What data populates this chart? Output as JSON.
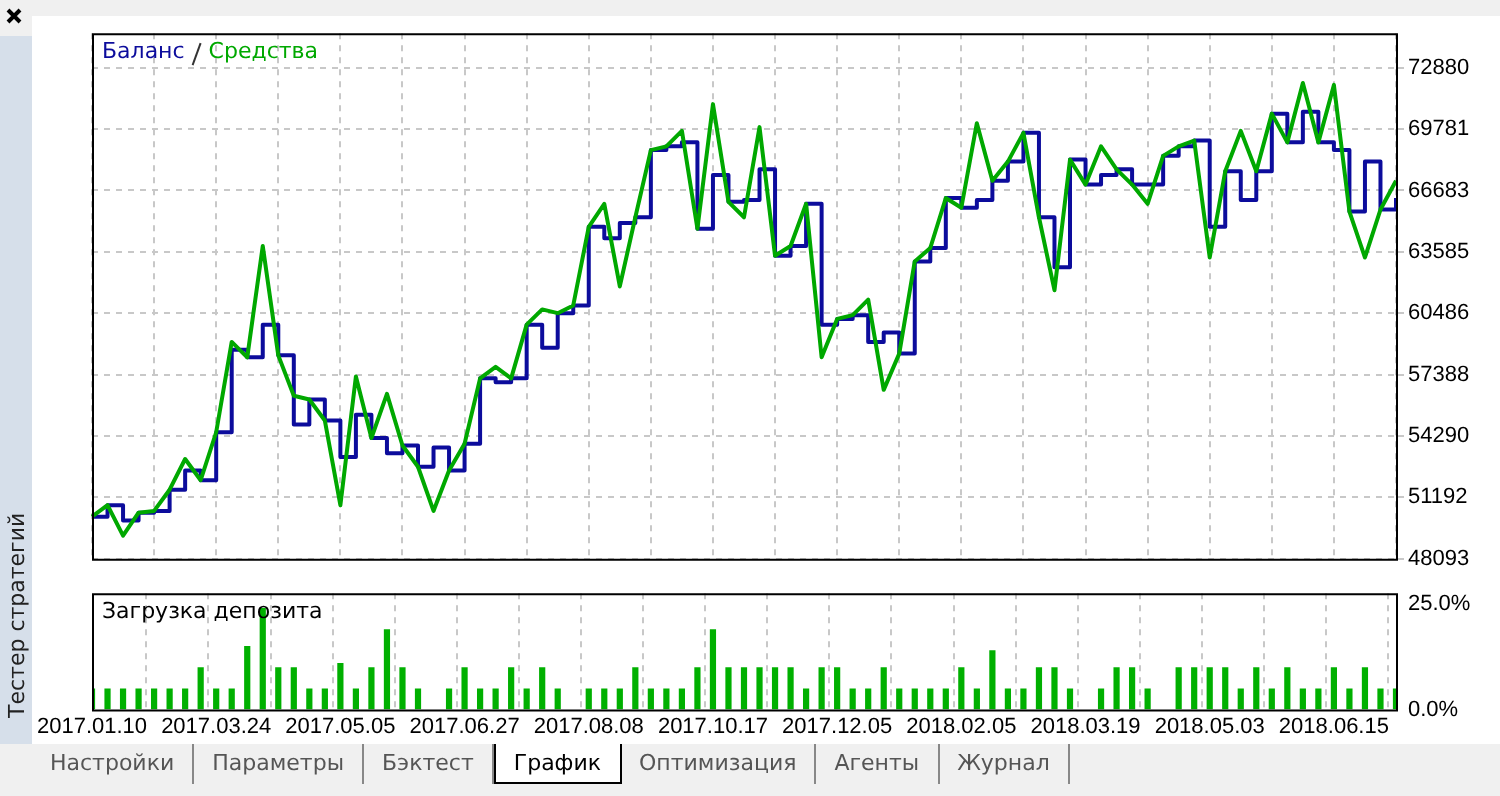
{
  "chart_data": [
    {
      "type": "line",
      "categories": [
        "2017.01.10",
        null,
        null,
        null,
        null,
        null,
        null,
        null,
        "2017.03.24",
        null,
        null,
        null,
        null,
        null,
        null,
        null,
        "2017.05.05",
        null,
        null,
        null,
        null,
        null,
        null,
        null,
        "2017.06.27",
        null,
        null,
        null,
        null,
        null,
        null,
        null,
        "2017.08.08",
        null,
        null,
        null,
        null,
        null,
        null,
        null,
        "2017.10.17",
        null,
        null,
        null,
        null,
        null,
        null,
        null,
        "2017.12.05",
        null,
        null,
        null,
        null,
        null,
        null,
        null,
        "2018.02.05",
        null,
        null,
        null,
        null,
        null,
        null,
        null,
        "2018.03.19",
        null,
        null,
        null,
        null,
        null,
        null,
        null,
        "2018.05.03",
        null,
        null,
        null,
        null,
        null,
        null,
        null,
        "2018.06.15",
        null,
        null,
        null,
        null
      ],
      "series": [
        {
          "name": "Средства",
          "color": "#00a800",
          "values": [
            50220,
            50800,
            49260,
            50420,
            50510,
            51580,
            53130,
            52060,
            54480,
            59040,
            58260,
            63880,
            58360,
            56320,
            56130,
            55070,
            50800,
            57290,
            54190,
            56420,
            53810,
            52740,
            50510,
            52550,
            53900,
            57200,
            57780,
            57200,
            59910,
            60680,
            60490,
            60880,
            64850,
            66010,
            61840,
            65330,
            68720,
            68910,
            69690,
            64750,
            71040,
            66110,
            65330,
            69880,
            63390,
            63880,
            66010,
            58260,
            60200,
            60390,
            61170,
            56620,
            58450,
            63100,
            63780,
            66300,
            65810,
            70080,
            67170,
            68140,
            69590,
            65330,
            61650,
            68240,
            66980,
            68910,
            67750,
            66980,
            66010,
            68430,
            68910,
            69200,
            63300,
            67650,
            69690,
            67650,
            70560,
            69110,
            72110,
            69110,
            72010,
            65620,
            63300,
            65720,
            67170
          ]
        },
        {
          "name": "Баланс",
          "type": "step",
          "color": "#0c0c9c",
          "values": [
            50220,
            50800,
            50030,
            50420,
            50510,
            51580,
            52550,
            52060,
            54480,
            58650,
            58260,
            59910,
            58360,
            54870,
            56130,
            55070,
            53230,
            55360,
            54190,
            53420,
            53810,
            52740,
            53710,
            52550,
            53900,
            57200,
            57000,
            57200,
            59910,
            58750,
            60490,
            60880,
            64850,
            64270,
            65040,
            65330,
            68720,
            68910,
            69110,
            64750,
            67460,
            66110,
            66200,
            67750,
            63390,
            63880,
            66010,
            59910,
            60200,
            60390,
            59040,
            59520,
            58450,
            63100,
            63780,
            66300,
            65810,
            66200,
            67170,
            68140,
            69590,
            65330,
            62810,
            68240,
            66980,
            67460,
            67750,
            66980,
            66980,
            68430,
            68910,
            69200,
            64850,
            67650,
            66200,
            67650,
            70560,
            69110,
            70660,
            69110,
            68720,
            65620,
            68140,
            65720,
            66300
          ]
        }
      ],
      "ylim": [
        48093,
        74620
      ],
      "yticks": [
        48093,
        51192,
        54290,
        57388,
        60486,
        63585,
        66683,
        69781,
        72880
      ],
      "grid": true,
      "legend": "top left",
      "tick_labels": "y"
    },
    {
      "type": "bar",
      "title": "Загрузка депозита",
      "categories": [
        "2017.01.10",
        null,
        null,
        null,
        null,
        null,
        null,
        null,
        "2017.03.24",
        null,
        null,
        null,
        null,
        null,
        null,
        null,
        "2017.05.05",
        null,
        null,
        null,
        null,
        null,
        null,
        null,
        "2017.06.27",
        null,
        null,
        null,
        null,
        null,
        null,
        null,
        "2017.08.08",
        null,
        null,
        null,
        null,
        null,
        null,
        null,
        "2017.10.17",
        null,
        null,
        null,
        null,
        null,
        null,
        null,
        "2017.12.05",
        null,
        null,
        null,
        null,
        null,
        null,
        null,
        "2018.02.05",
        null,
        null,
        null,
        null,
        null,
        null,
        null,
        "2018.03.19",
        null,
        null,
        null,
        null,
        null,
        null,
        null,
        "2018.05.03",
        null,
        null,
        null,
        null,
        null,
        null,
        null,
        "2018.06.15",
        null,
        null,
        null,
        null
      ],
      "values": [
        5,
        5,
        5,
        5,
        5,
        5,
        5,
        10,
        5,
        5,
        15,
        24,
        10,
        10,
        5,
        5,
        11,
        5,
        10,
        19,
        10,
        5,
        0,
        5,
        10,
        5,
        5,
        10,
        5,
        10,
        5,
        0,
        5,
        5,
        5,
        10,
        5,
        5,
        5,
        10,
        19,
        10,
        10,
        10,
        10,
        10,
        5,
        10,
        10,
        5,
        5,
        10,
        5,
        5,
        5,
        5,
        10,
        5,
        14,
        5,
        5,
        10,
        10,
        5,
        0,
        5,
        10,
        10,
        5,
        0,
        10,
        10,
        10,
        10,
        5,
        10,
        5,
        10,
        5,
        5,
        10,
        5,
        10,
        5,
        5
      ],
      "color": "#00b000",
      "ylim": [
        0,
        27.5
      ],
      "yticks": [
        {
          "value": 0,
          "label": "0.0%"
        },
        {
          "value": 25,
          "label": "25.0%"
        }
      ],
      "grid": "x",
      "annotations": [
        "Тестер стратегий",
        "Настройки",
        "Параметры",
        "Бэктест",
        "График",
        "Оптимизация",
        "Агенты",
        "Журнал"
      ]
    }
  ]
}
